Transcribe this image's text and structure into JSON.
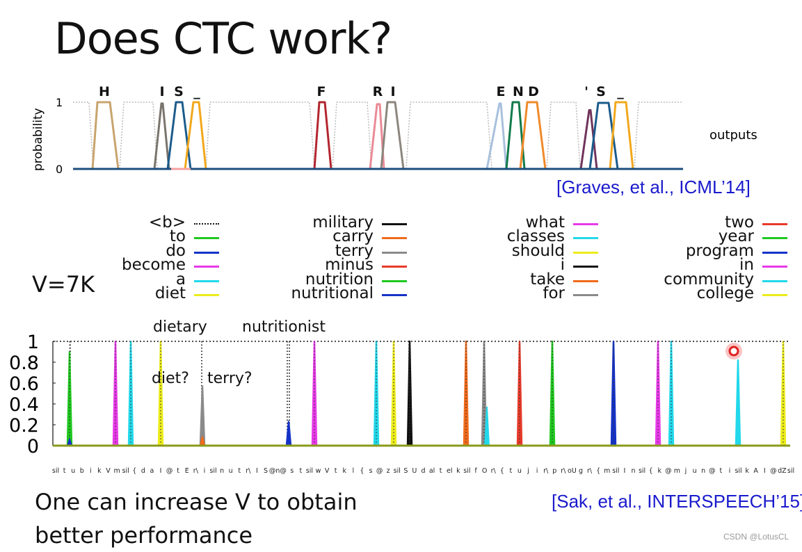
{
  "title": "Does CTC work?",
  "top_figure": {
    "citation": "[Graves, et al., ICML’14]",
    "ylabel": "probability",
    "y_ticks": [
      "1",
      "0"
    ],
    "outputs_label": "outputs",
    "letters": [
      {
        "text": "H",
        "color": "#c8a46e"
      },
      {
        "text": "I",
        "color": "#7a746c"
      },
      {
        "text": "S",
        "color": "#1b5b8b"
      },
      {
        "text": "_",
        "color": "#f2a81c"
      },
      {
        "text": "F",
        "color": "#b3262f"
      },
      {
        "text": "R",
        "color": "#ea8a96"
      },
      {
        "text": "I",
        "color": "#8c867e"
      },
      {
        "text": "E",
        "color": "#a8c0dc"
      },
      {
        "text": "N",
        "color": "#127a4a"
      },
      {
        "text": "D",
        "color": "#f08a2a"
      },
      {
        "text": "'",
        "color": "#70345c"
      },
      {
        "text": "S",
        "color": "#1b5b8b"
      },
      {
        "text": "_",
        "color": "#f2a81c"
      }
    ]
  },
  "vocab_label": "V=7K",
  "legend": [
    [
      {
        "label": "<b>",
        "color": "#111111",
        "style": "dotted"
      },
      {
        "label": "to",
        "color": "#1fc81f",
        "style": "solid"
      },
      {
        "label": "do",
        "color": "#1532c8",
        "style": "solid"
      },
      {
        "label": "become",
        "color": "#e839e8",
        "style": "solid"
      },
      {
        "label": "a",
        "color": "#22d8ea",
        "style": "solid"
      },
      {
        "label": "diet",
        "color": "#ecec1c",
        "style": "solid"
      }
    ],
    [
      {
        "label": "military",
        "color": "#111111",
        "style": "solid"
      },
      {
        "label": "carry",
        "color": "#f06a1a",
        "style": "solid"
      },
      {
        "label": "terry",
        "color": "#8a8a8a",
        "style": "solid"
      },
      {
        "label": "minus",
        "color": "#e83a2a",
        "style": "solid"
      },
      {
        "label": "nutrition",
        "color": "#1fc81f",
        "style": "solid"
      },
      {
        "label": "nutritional",
        "color": "#1532c8",
        "style": "solid"
      }
    ],
    [
      {
        "label": "what",
        "color": "#e839e8",
        "style": "solid"
      },
      {
        "label": "classes",
        "color": "#22d8ea",
        "style": "solid"
      },
      {
        "label": "should",
        "color": "#ecec1c",
        "style": "solid"
      },
      {
        "label": "i",
        "color": "#111111",
        "style": "solid"
      },
      {
        "label": "take",
        "color": "#f06a1a",
        "style": "solid"
      },
      {
        "label": "for",
        "color": "#8a8a8a",
        "style": "solid"
      }
    ],
    [
      {
        "label": "two",
        "color": "#e83a2a",
        "style": "solid"
      },
      {
        "label": "year",
        "color": "#1fc81f",
        "style": "solid"
      },
      {
        "label": "program",
        "color": "#1532c8",
        "style": "solid"
      },
      {
        "label": "in",
        "color": "#e839e8",
        "style": "solid"
      },
      {
        "label": "community",
        "color": "#22d8ea",
        "style": "solid"
      },
      {
        "label": "college",
        "color": "#ecec1c",
        "style": "solid"
      }
    ]
  ],
  "bottom_annotations": {
    "dietary": "dietary",
    "nutritionist": "nutritionist",
    "diet_q": "diet?",
    "terry_q": "terry?"
  },
  "chart_data": [
    {
      "type": "line",
      "title": "",
      "ylabel": "probability",
      "ylim": [
        0,
        1
      ],
      "y_ticks": [
        "1",
        "0"
      ],
      "legend_text": "outputs",
      "series": [
        {
          "name": "H",
          "color": "#c8a46e",
          "peak": 1.0
        },
        {
          "name": "I",
          "color": "#7a746c",
          "peak": 0.98
        },
        {
          "name": "S",
          "color": "#1b5b8b",
          "peak": 1.0
        },
        {
          "name": "_",
          "color": "#f2a81c",
          "peak": 1.0
        },
        {
          "name": "F",
          "color": "#b3262f",
          "peak": 1.0
        },
        {
          "name": "R",
          "color": "#ea8a96",
          "peak": 0.97
        },
        {
          "name": "I",
          "color": "#8c867e",
          "peak": 1.0
        },
        {
          "name": "E",
          "color": "#a8c0dc",
          "peak": 0.98
        },
        {
          "name": "N",
          "color": "#127a4a",
          "peak": 1.0
        },
        {
          "name": "D",
          "color": "#f08a2a",
          "peak": 1.0
        },
        {
          "name": "'",
          "color": "#70345c",
          "peak": 0.88
        },
        {
          "name": "S",
          "color": "#1b5b8b",
          "peak": 0.99
        },
        {
          "name": "_",
          "color": "#f2a81c",
          "peak": 1.0
        }
      ]
    },
    {
      "type": "line",
      "title": "",
      "ylim": [
        0,
        1
      ],
      "y_ticks": [
        "1",
        "0.8",
        "0.6",
        "0.4",
        "0.2",
        "0"
      ],
      "x_labels": [
        "sil",
        "t",
        "u",
        "b",
        "i",
        "k",
        "V",
        "m",
        "sil",
        "{",
        "d",
        "a",
        "I",
        "@",
        "t",
        "E",
        "r\\",
        "i",
        "sil",
        "n",
        "u",
        "t",
        "r\\",
        "I",
        "S",
        "@n",
        "@",
        "s",
        "t",
        "sil",
        "w",
        "V",
        "t",
        "k",
        "l",
        "{",
        "s",
        "@",
        "z",
        "sil",
        "S",
        "U",
        "d",
        "al",
        "t",
        "el",
        "k",
        "sil",
        "f",
        "O",
        "r\\",
        "{",
        "t",
        "u",
        "j",
        "i",
        "r\\",
        "p",
        "r\\",
        "oU",
        "g",
        "r\\",
        "{",
        "m",
        "sil",
        "I",
        "n",
        "sil",
        "{",
        "k",
        "@",
        "m",
        "j",
        "u",
        "n",
        "@",
        "t",
        "i",
        "sil",
        "k",
        "A",
        "I",
        "@",
        "dZ",
        "sil"
      ],
      "series": [
        {
          "name": "to",
          "color": "#1fc81f",
          "peak": 0.9
        },
        {
          "name": "become",
          "color": "#e839e8",
          "peak": 1.0
        },
        {
          "name": "a",
          "color": "#22d8ea",
          "peak": 1.0
        },
        {
          "name": "diet",
          "color": "#ecec1c",
          "peak": 1.0
        },
        {
          "name": "terry",
          "color": "#8a8a8a",
          "peak": 0.57
        },
        {
          "name": "nutritional",
          "color": "#1532c8",
          "peak": 0.23
        },
        {
          "name": "become",
          "color": "#e839e8",
          "peak": 1.0
        },
        {
          "name": "classes",
          "color": "#22d8ea",
          "peak": 1.0
        },
        {
          "name": "should",
          "color": "#ecec1c",
          "peak": 1.0
        },
        {
          "name": "i",
          "color": "#111111",
          "peak": 1.0
        },
        {
          "name": "take",
          "color": "#f06a1a",
          "peak": 1.0
        },
        {
          "name": "for",
          "color": "#8a8a8a",
          "peak": 1.0
        },
        {
          "name": "two",
          "color": "#e83a2a",
          "peak": 1.0
        },
        {
          "name": "year",
          "color": "#1fc81f",
          "peak": 1.0
        },
        {
          "name": "program",
          "color": "#1532c8",
          "peak": 1.0
        },
        {
          "name": "in",
          "color": "#e839e8",
          "peak": 1.0
        },
        {
          "name": "community",
          "color": "#22d8ea",
          "peak": 1.0
        },
        {
          "name": "community",
          "color": "#22d8ea",
          "peak": 0.82
        },
        {
          "name": "college",
          "color": "#ecec1c",
          "peak": 1.0
        }
      ]
    }
  ],
  "conclusion": {
    "line1": "One can increase V to obtain",
    "line2": "better performance"
  },
  "bottom_citation": "[Sak, et al., INTERSPEECH’15]",
  "watermark": "CSDN @LotusCL"
}
